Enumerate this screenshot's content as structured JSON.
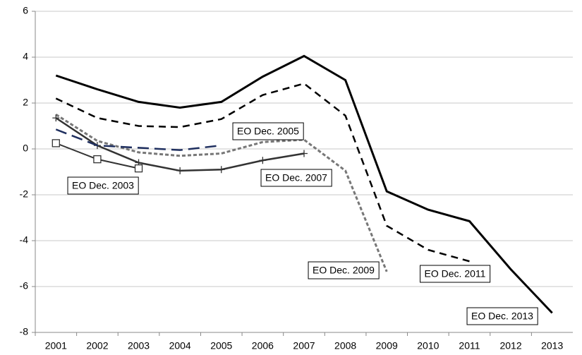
{
  "chart_data": {
    "type": "line",
    "categories": [
      "2001",
      "2002",
      "2003",
      "2004",
      "2005",
      "2006",
      "2007",
      "2008",
      "2009",
      "2010",
      "2011",
      "2012",
      "2013"
    ],
    "ylim": [
      -8,
      6
    ],
    "yticks": [
      -8,
      -6,
      -4,
      -2,
      0,
      2,
      4,
      6
    ],
    "grid": true,
    "series": [
      {
        "name": "EO Dec. 2013",
        "color": "#000000",
        "values": [
          3.2,
          2.6,
          2.05,
          1.8,
          2.05,
          3.15,
          4.05,
          3.0,
          -1.85,
          -2.65,
          -3.15,
          -5.25,
          -7.15
        ]
      },
      {
        "name": "EO Dec. 2011",
        "color": "#000000",
        "values": [
          2.2,
          1.35,
          1.0,
          0.95,
          1.3,
          2.35,
          2.85,
          1.45,
          -3.35,
          -4.4,
          -4.9,
          null,
          null
        ]
      },
      {
        "name": "EO Dec. 2009",
        "color": "#777777",
        "values": [
          1.5,
          0.35,
          -0.15,
          -0.3,
          -0.2,
          0.3,
          0.4,
          -0.95,
          -5.35,
          null,
          null,
          null,
          null
        ]
      },
      {
        "name": "EO Dec. 2007",
        "color": "#333333",
        "values": [
          1.35,
          0.15,
          -0.6,
          -0.95,
          -0.9,
          -0.5,
          -0.2,
          null,
          null,
          null,
          null,
          null,
          null
        ]
      },
      {
        "name": "EO Dec. 2005",
        "color": "#1f2f5f",
        "values": [
          0.85,
          0.15,
          0.05,
          -0.05,
          0.15,
          null,
          null,
          null,
          null,
          null,
          null,
          null,
          null
        ]
      },
      {
        "name": "EO Dec. 2003",
        "color": "#333333",
        "values": [
          0.25,
          -0.45,
          -0.85,
          null,
          null,
          null,
          null,
          null,
          null,
          null,
          null,
          null,
          null
        ]
      }
    ]
  }
}
